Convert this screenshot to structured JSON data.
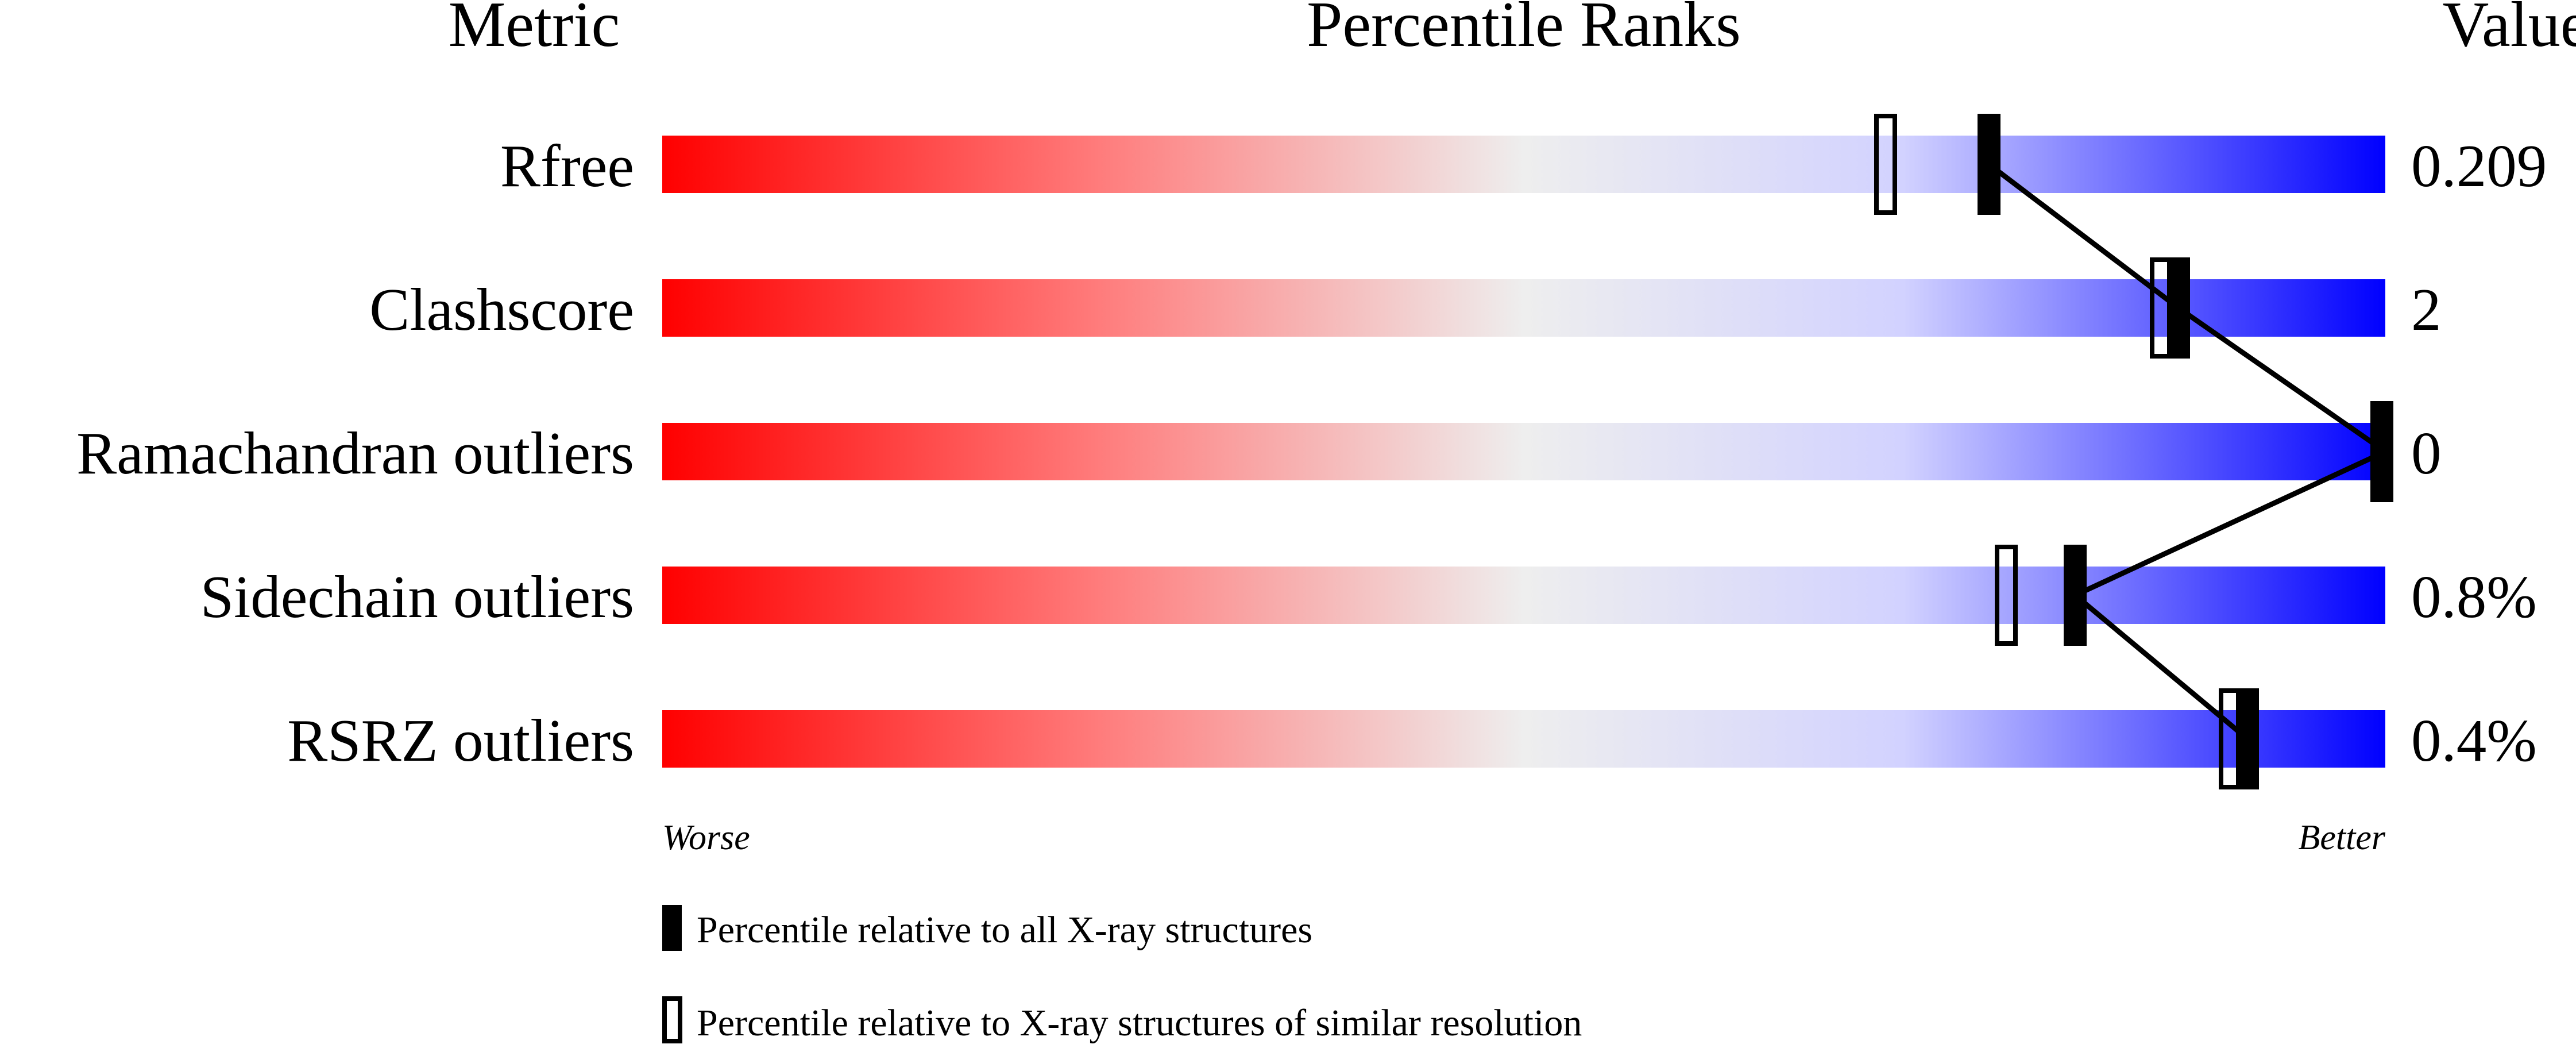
{
  "chart_data": {
    "type": "percentile-bar",
    "headers": {
      "metric": "Metric",
      "title": "Percentile Ranks",
      "value": "Value"
    },
    "metrics": [
      {
        "label": "Rfree",
        "value": "0.209",
        "percentile_all": 77,
        "percentile_similar": 71
      },
      {
        "label": "Clashscore",
        "value": "2",
        "percentile_all": 88,
        "percentile_similar": 87
      },
      {
        "label": "Ramachandran outliers",
        "value": "0",
        "percentile_all": 100,
        "percentile_similar": null
      },
      {
        "label": "Sidechain outliers",
        "value": "0.8%",
        "percentile_all": 82,
        "percentile_similar": 78
      },
      {
        "label": "RSRZ outliers",
        "value": "0.4%",
        "percentile_all": 92,
        "percentile_similar": 91
      }
    ],
    "xlim": [
      0,
      100
    ],
    "axis_labels": {
      "left": "Worse",
      "right": "Better"
    },
    "legend": {
      "filled": "Percentile relative to all X-ray structures",
      "hollow": "Percentile relative to X-ray structures of similar resolution"
    },
    "colors": {
      "worse": "#ff0000",
      "middle": "#eeeeee",
      "better": "#0000ff",
      "marker": "#000000"
    }
  }
}
